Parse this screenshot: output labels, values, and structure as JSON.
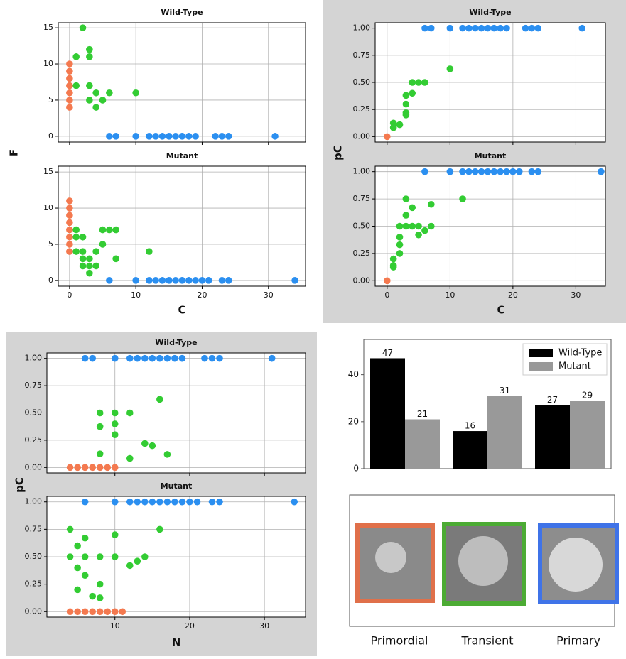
{
  "chart_data": [
    {
      "type": "scatter",
      "xlabel": "C",
      "ylabel": "F",
      "xlim": [
        -1.7,
        35.6
      ],
      "xticks": [
        0,
        10,
        20,
        30
      ],
      "grid": true,
      "subplots": [
        {
          "title": "Wild-Type",
          "ylim": [
            -0.8,
            15.7
          ],
          "yticks": [
            0,
            5,
            10,
            15
          ],
          "series": [
            {
              "color": "#f4794f",
              "x": [
                0,
                0,
                0,
                0,
                0,
                0,
                0
              ],
              "values": [
                4,
                5,
                6,
                7,
                8,
                9,
                10
              ]
            },
            {
              "color": "#33cc33",
              "x": [
                1,
                2,
                1,
                3,
                3,
                3,
                3,
                4,
                4,
                5,
                6,
                10
              ],
              "values": [
                11,
                15,
                7,
                12,
                11,
                7,
                5,
                6,
                4,
                5,
                6,
                6
              ]
            },
            {
              "color": "#2b8ff0",
              "x": [
                6,
                7,
                10,
                12,
                13,
                14,
                15,
                16,
                17,
                18,
                19,
                22,
                23,
                24,
                31
              ],
              "values": [
                0,
                0,
                0,
                0,
                0,
                0,
                0,
                0,
                0,
                0,
                0,
                0,
                0,
                0,
                0
              ]
            }
          ]
        },
        {
          "title": "Mutant",
          "ylim": [
            -0.8,
            15.8
          ],
          "yticks": [
            0,
            5,
            10,
            15
          ],
          "series": [
            {
              "color": "#f4794f",
              "x": [
                0,
                0,
                0,
                0,
                0,
                0,
                0,
                0
              ],
              "values": [
                4,
                5,
                6,
                7,
                8,
                9,
                10,
                11
              ]
            },
            {
              "color": "#33cc33",
              "x": [
                1,
                1,
                1,
                2,
                2,
                2,
                2,
                3,
                3,
                3,
                4,
                4,
                5,
                5,
                6,
                7,
                7,
                12
              ],
              "values": [
                7,
                6,
                4,
                6,
                4,
                3,
                2,
                3,
                2,
                1,
                2,
                4,
                5,
                7,
                7,
                7,
                3,
                4
              ]
            },
            {
              "color": "#2b8ff0",
              "x": [
                6,
                10,
                12,
                13,
                14,
                15,
                16,
                17,
                18,
                19,
                20,
                21,
                23,
                24,
                34
              ],
              "values": [
                0,
                0,
                0,
                0,
                0,
                0,
                0,
                0,
                0,
                0,
                0,
                0,
                0,
                0,
                0
              ]
            }
          ]
        }
      ]
    },
    {
      "type": "scatter",
      "xlabel": "C",
      "ylabel": "pC",
      "xlim": [
        -1.9,
        34.7
      ],
      "xticks": [
        0,
        10,
        20,
        30
      ],
      "grid": true,
      "subplots": [
        {
          "title": "Wild-Type",
          "ylim": [
            -0.05,
            1.05
          ],
          "yticks": [
            {
              "value": 0,
              "label": "0.00"
            },
            {
              "value": 0.25,
              "label": "0.25"
            },
            {
              "value": 0.5,
              "label": "0.50"
            },
            {
              "value": 0.75,
              "label": "0.75"
            },
            {
              "value": 1,
              "label": "1.00"
            }
          ],
          "series": [
            {
              "color": "#f4794f",
              "x": [
                0
              ],
              "values": [
                0
              ]
            },
            {
              "color": "#33cc33",
              "x": [
                1,
                1,
                2,
                3,
                3,
                3,
                3,
                4,
                4,
                5,
                6,
                10
              ],
              "values": [
                0.125,
                0.083,
                0.11,
                0.2,
                0.22,
                0.3,
                0.38,
                0.4,
                0.5,
                0.5,
                0.5,
                0.625
              ]
            },
            {
              "color": "#2b8ff0",
              "x": [
                6,
                7,
                10,
                12,
                13,
                14,
                15,
                16,
                17,
                18,
                19,
                22,
                23,
                24,
                31
              ],
              "values": [
                1,
                1,
                1,
                1,
                1,
                1,
                1,
                1,
                1,
                1,
                1,
                1,
                1,
                1,
                1
              ]
            }
          ]
        },
        {
          "title": "Mutant",
          "ylim": [
            -0.05,
            1.05
          ],
          "yticks": [
            {
              "value": 0,
              "label": "0.00"
            },
            {
              "value": 0.25,
              "label": "0.25"
            },
            {
              "value": 0.5,
              "label": "0.50"
            },
            {
              "value": 0.75,
              "label": "0.75"
            },
            {
              "value": 1,
              "label": "1.00"
            }
          ],
          "series": [
            {
              "color": "#f4794f",
              "x": [
                0
              ],
              "values": [
                0
              ]
            },
            {
              "color": "#33cc33",
              "x": [
                1,
                1,
                1,
                2,
                2,
                2,
                2,
                3,
                3,
                3,
                4,
                4,
                5,
                5,
                6,
                7,
                7,
                12
              ],
              "values": [
                0.2,
                0.125,
                0.14,
                0.25,
                0.33,
                0.4,
                0.5,
                0.5,
                0.6,
                0.75,
                0.67,
                0.5,
                0.5,
                0.42,
                0.46,
                0.5,
                0.7,
                0.75
              ]
            },
            {
              "color": "#2b8ff0",
              "x": [
                6,
                10,
                12,
                13,
                14,
                15,
                16,
                17,
                18,
                19,
                20,
                21,
                23,
                24,
                34
              ],
              "values": [
                1,
                1,
                1,
                1,
                1,
                1,
                1,
                1,
                1,
                1,
                1,
                1,
                1,
                1,
                1
              ]
            }
          ]
        }
      ]
    },
    {
      "type": "scatter",
      "xlabel": "N",
      "ylabel": "pC",
      "xlim": [
        0.9,
        35.5
      ],
      "xticks": [
        10,
        20,
        30
      ],
      "grid": true,
      "subplots": [
        {
          "title": "Wild-Type",
          "ylim": [
            -0.05,
            1.05
          ],
          "yticks": [
            {
              "value": 0,
              "label": "0.00"
            },
            {
              "value": 0.25,
              "label": "0.25"
            },
            {
              "value": 0.5,
              "label": "0.50"
            },
            {
              "value": 0.75,
              "label": "0.75"
            },
            {
              "value": 1,
              "label": "1.00"
            }
          ],
          "series": [
            {
              "color": "#f4794f",
              "x": [
                4,
                5,
                6,
                7,
                8,
                9,
                10
              ],
              "values": [
                0,
                0,
                0,
                0,
                0,
                0,
                0
              ]
            },
            {
              "color": "#33cc33",
              "x": [
                8,
                8,
                8,
                10,
                10,
                10,
                12,
                12,
                14,
                15,
                16,
                17
              ],
              "values": [
                0.5,
                0.375,
                0.125,
                0.5,
                0.4,
                0.3,
                0.5,
                0.083,
                0.22,
                0.2,
                0.625,
                0.12
              ]
            },
            {
              "color": "#2b8ff0",
              "x": [
                6,
                7,
                10,
                12,
                13,
                14,
                15,
                16,
                17,
                18,
                19,
                22,
                23,
                24,
                31
              ],
              "values": [
                1,
                1,
                1,
                1,
                1,
                1,
                1,
                1,
                1,
                1,
                1,
                1,
                1,
                1,
                1
              ]
            }
          ]
        },
        {
          "title": "Mutant",
          "ylim": [
            -0.05,
            1.05
          ],
          "yticks": [
            {
              "value": 0,
              "label": "0.00"
            },
            {
              "value": 0.25,
              "label": "0.25"
            },
            {
              "value": 0.5,
              "label": "0.50"
            },
            {
              "value": 0.75,
              "label": "0.75"
            },
            {
              "value": 1,
              "label": "1.00"
            }
          ],
          "series": [
            {
              "color": "#f4794f",
              "x": [
                4,
                5,
                6,
                7,
                8,
                9,
                10,
                11
              ],
              "values": [
                0,
                0,
                0,
                0,
                0,
                0,
                0,
                0
              ]
            },
            {
              "color": "#33cc33",
              "x": [
                4,
                4,
                5,
                5,
                5,
                6,
                6,
                6,
                7,
                8,
                8,
                8,
                10,
                10,
                12,
                13,
                14,
                16
              ],
              "values": [
                0.75,
                0.5,
                0.6,
                0.4,
                0.2,
                0.67,
                0.5,
                0.33,
                0.14,
                0.5,
                0.25,
                0.125,
                0.7,
                0.5,
                0.42,
                0.46,
                0.5,
                0.75
              ]
            },
            {
              "color": "#2b8ff0",
              "x": [
                6,
                10,
                12,
                13,
                14,
                15,
                16,
                17,
                18,
                19,
                20,
                21,
                23,
                24,
                34
              ],
              "values": [
                1,
                1,
                1,
                1,
                1,
                1,
                1,
                1,
                1,
                1,
                1,
                1,
                1,
                1,
                1
              ]
            }
          ]
        }
      ]
    },
    {
      "type": "bar",
      "categories": [
        "Primordial",
        "Transient",
        "Primary"
      ],
      "ylim": [
        0,
        55
      ],
      "yticks": [
        0,
        20,
        40
      ],
      "legend": "upper right",
      "series": [
        {
          "name": "Wild-Type",
          "color": "#000000",
          "values": [
            47,
            16,
            27
          ]
        },
        {
          "name": "Mutant",
          "color": "#999999",
          "values": [
            21,
            31,
            29
          ]
        }
      ]
    }
  ]
}
